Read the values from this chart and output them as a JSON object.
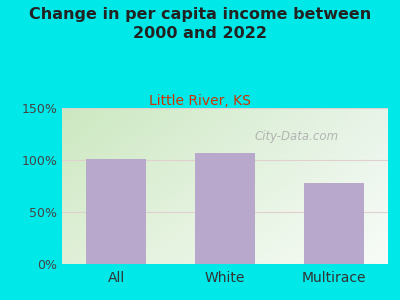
{
  "title": "Change in per capita income between\n2000 and 2022",
  "subtitle": "Little River, KS",
  "categories": [
    "All",
    "White",
    "Multirace"
  ],
  "values": [
    101,
    107,
    78
  ],
  "bar_color": "#b8a8cc",
  "title_color": "#222222",
  "subtitle_color": "#cc3300",
  "background_color": "#00e8e8",
  "plot_bg_topleft": "#cce8c0",
  "plot_bg_bottomright": "#f0f8f0",
  "ylim": [
    0,
    150
  ],
  "yticks": [
    0,
    50,
    100,
    150
  ],
  "watermark": "City-Data.com",
  "watermark_color": "#aaaaaa",
  "grid_color": "#e0d0d0",
  "title_fontsize": 11.5,
  "subtitle_fontsize": 10,
  "tick_fontsize": 9,
  "label_fontsize": 10
}
